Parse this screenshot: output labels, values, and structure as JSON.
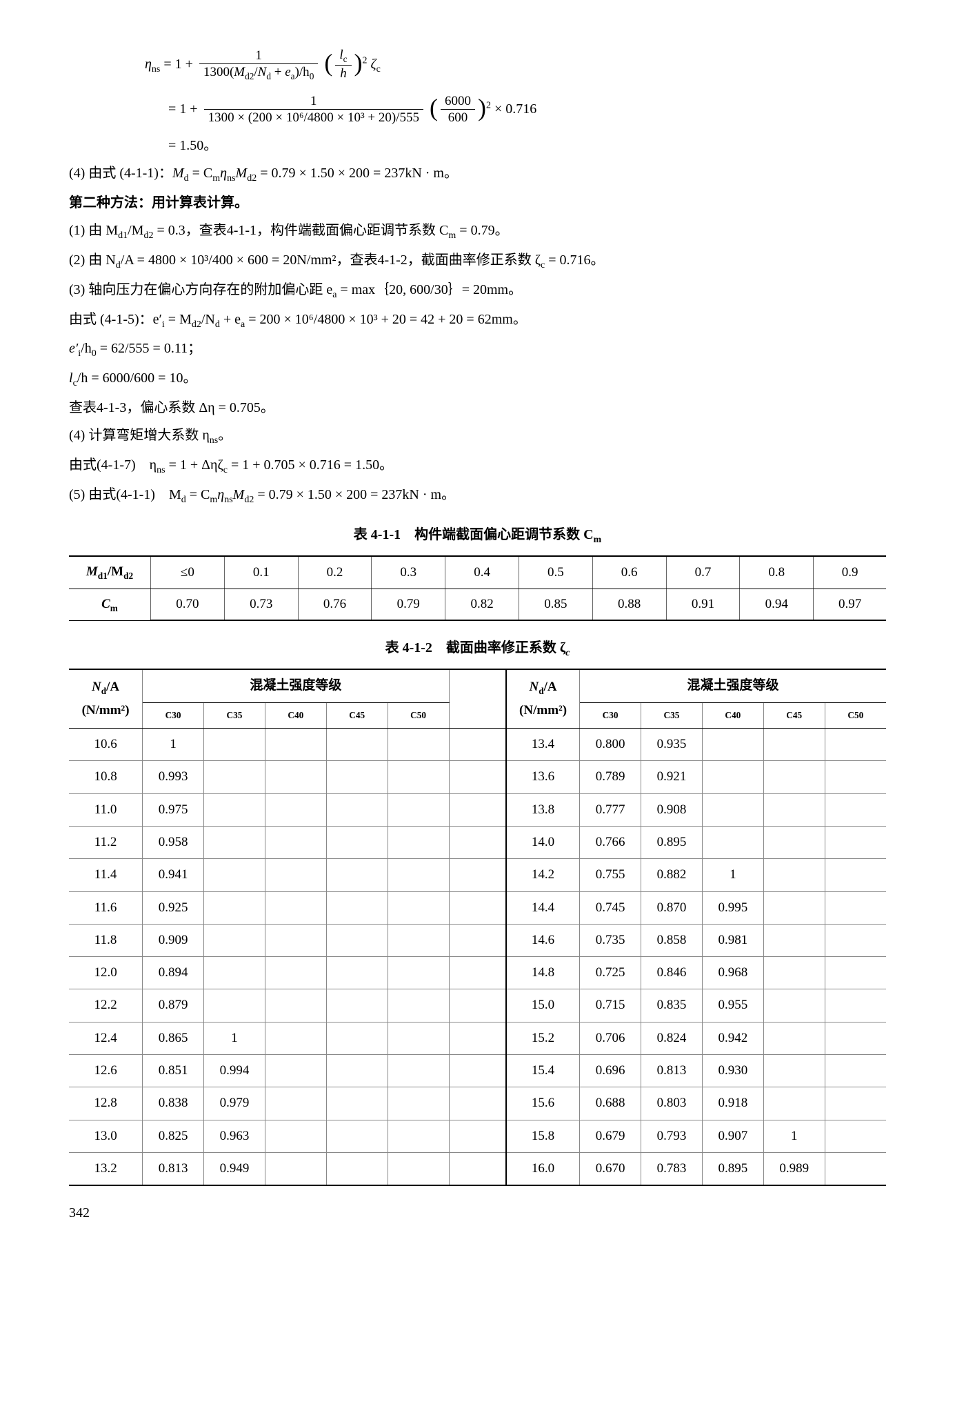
{
  "page_number": "342",
  "formula_block": {
    "line1_prefix": "η",
    "line1_prefix_sub": "ns",
    "line1_eq": " = 1 + ",
    "line1_frac_num": "1",
    "line1_frac_den_a": "1300(",
    "line1_frac_den_m": "M",
    "line1_frac_den_msub": "d2",
    "line1_frac_den_slash": "/",
    "line1_frac_den_n": "N",
    "line1_frac_den_nsub": "d",
    "line1_frac_den_plus": " + ",
    "line1_frac_den_e": "e",
    "line1_frac_den_esub": "a",
    "line1_frac_den_close": ")/h",
    "line1_frac_den_h0sub": "0",
    "line1_paren_frac_num": "l",
    "line1_paren_frac_num_sub": "c",
    "line1_paren_frac_den": "h",
    "line1_sq": "2",
    "line1_zeta": "ζ",
    "line1_zeta_sub": "c",
    "line2_a": "= 1 + ",
    "line2_frac_num": "1",
    "line2_frac_den": "1300 × (200 × 10⁶/4800 × 10³ + 20)/555",
    "line2_paren_num": "6000",
    "line2_paren_den": "600",
    "line2_sq": "2",
    "line2_tail": " × 0.716",
    "line3": "= 1.50。"
  },
  "p4": {
    "label": "(4) 由式 (4-1-1)：",
    "expr": "M",
    "expr_sub": "d",
    "eq1": " = C",
    "cm_sub": "m",
    "eta": "η",
    "eta_sub": "ns",
    "m2": "M",
    "m2_sub": "d2",
    "vals": " = 0.79 × 1.50 × 200 = 237kN · m。"
  },
  "method2_title": "第二种方法：用计算表计算。",
  "s1": "(1) 由 M",
  "s1_sub1": "d1",
  "s1_mid": "/M",
  "s1_sub2": "d2",
  "s1_b": " = 0.3，查表4-1-1，构件端截面偏心距调节系数 C",
  "s1_cmsub": "m",
  "s1_c": " = 0.79。",
  "s2": "(2) 由 N",
  "s2_sub": "d",
  "s2_mid": "/A = 4800 × 10³/400 × 600 = 20N/mm²，查表4-1-2，截面曲率修正系数 ζ",
  "s2_zsub": "c",
  "s2_c": " = 0.716。",
  "s3": "(3) 轴向压力在偏心方向存在的附加偏心距 e",
  "s3_sub": "a",
  "s3_b": " = max｛20, 600/30｝= 20mm。",
  "s_eq": "由式 (4-1-5)：e′",
  "s_eq_sub": "i",
  "s_eq_b": " = M",
  "s_eq_b_sub": "d2",
  "s_eq_c": "/N",
  "s_eq_c_sub": "d",
  "s_eq_d": " + e",
  "s_eq_d_sub": "a",
  "s_eq_e": " = 200 × 10⁶/4800 × 10³ + 20 = 42 + 20 = 62mm。",
  "s_ei": "e′",
  "s_ei_sub": "i",
  "s_ei_b": "/h",
  "s_ei_b_sub": "0",
  "s_ei_c": " = 62/555 = 0.11；",
  "s_lc": "l",
  "s_lc_sub": "c",
  "s_lc_b": "/h = 6000/600 = 10。",
  "s_lookup": "查表4-1-3，偏心系数 Δη = 0.705。",
  "s4": "(4) 计算弯矩增大系数 η",
  "s4_sub": "ns",
  "s4_end": "。",
  "s_417": "由式(4-1-7)　η",
  "s_417_sub": "ns",
  "s_417_b": " = 1 + Δηζ",
  "s_417_zsub": "c",
  "s_417_c": " = 1 + 0.705 × 0.716 = 1.50。",
  "s5": "(5) 由式(4-1-1)　M",
  "s5_sub": "d",
  "s5_b": " = C",
  "s5_cmsub": "m",
  "s5_eta": "η",
  "s5_etasub": "ns",
  "s5_m2": "M",
  "s5_m2sub": "d2",
  "s5_c": " = 0.79 × 1.50 × 200 = 237kN · m。",
  "table1": {
    "title": "表 4-1-1　构件端截面偏心距调节系数 C",
    "title_sub": "m",
    "row1_label_a": "M",
    "row1_label_a_sub": "d1",
    "row1_label_mid": "/M",
    "row1_label_b_sub": "d2",
    "row1": [
      "≤0",
      "0.1",
      "0.2",
      "0.3",
      "0.4",
      "0.5",
      "0.6",
      "0.7",
      "0.8",
      "0.9"
    ],
    "row2_label": "C",
    "row2_label_sub": "m",
    "row2": [
      "0.70",
      "0.73",
      "0.76",
      "0.79",
      "0.82",
      "0.85",
      "0.88",
      "0.91",
      "0.94",
      "0.97"
    ]
  },
  "table2": {
    "title": "表 4-1-2　截面曲率修正系数 ζ",
    "title_sub": "c",
    "col_group": "混凝土强度等级",
    "col_na_a": "N",
    "col_na_a_sub": "d",
    "col_na_b": "/A",
    "col_na_unit": "(N/mm²)",
    "sub_cols": [
      "C30",
      "C35",
      "C40",
      "C45",
      "C50"
    ],
    "left_rows": [
      [
        "10.6",
        "1",
        "",
        "",
        "",
        ""
      ],
      [
        "10.8",
        "0.993",
        "",
        "",
        "",
        ""
      ],
      [
        "11.0",
        "0.975",
        "",
        "",
        "",
        ""
      ],
      [
        "11.2",
        "0.958",
        "",
        "",
        "",
        ""
      ],
      [
        "11.4",
        "0.941",
        "",
        "",
        "",
        ""
      ],
      [
        "11.6",
        "0.925",
        "",
        "",
        "",
        ""
      ],
      [
        "11.8",
        "0.909",
        "",
        "",
        "",
        ""
      ],
      [
        "12.0",
        "0.894",
        "",
        "",
        "",
        ""
      ],
      [
        "12.2",
        "0.879",
        "",
        "",
        "",
        ""
      ],
      [
        "12.4",
        "0.865",
        "1",
        "",
        "",
        ""
      ],
      [
        "12.6",
        "0.851",
        "0.994",
        "",
        "",
        ""
      ],
      [
        "12.8",
        "0.838",
        "0.979",
        "",
        "",
        ""
      ],
      [
        "13.0",
        "0.825",
        "0.963",
        "",
        "",
        ""
      ],
      [
        "13.2",
        "0.813",
        "0.949",
        "",
        "",
        ""
      ]
    ],
    "right_rows": [
      [
        "13.4",
        "0.800",
        "0.935",
        "",
        "",
        ""
      ],
      [
        "13.6",
        "0.789",
        "0.921",
        "",
        "",
        ""
      ],
      [
        "13.8",
        "0.777",
        "0.908",
        "",
        "",
        ""
      ],
      [
        "14.0",
        "0.766",
        "0.895",
        "",
        "",
        ""
      ],
      [
        "14.2",
        "0.755",
        "0.882",
        "1",
        "",
        ""
      ],
      [
        "14.4",
        "0.745",
        "0.870",
        "0.995",
        "",
        ""
      ],
      [
        "14.6",
        "0.735",
        "0.858",
        "0.981",
        "",
        ""
      ],
      [
        "14.8",
        "0.725",
        "0.846",
        "0.968",
        "",
        ""
      ],
      [
        "15.0",
        "0.715",
        "0.835",
        "0.955",
        "",
        ""
      ],
      [
        "15.2",
        "0.706",
        "0.824",
        "0.942",
        "",
        ""
      ],
      [
        "15.4",
        "0.696",
        "0.813",
        "0.930",
        "",
        ""
      ],
      [
        "15.6",
        "0.688",
        "0.803",
        "0.918",
        "",
        ""
      ],
      [
        "15.8",
        "0.679",
        "0.793",
        "0.907",
        "1",
        ""
      ],
      [
        "16.0",
        "0.670",
        "0.783",
        "0.895",
        "0.989",
        ""
      ]
    ]
  }
}
